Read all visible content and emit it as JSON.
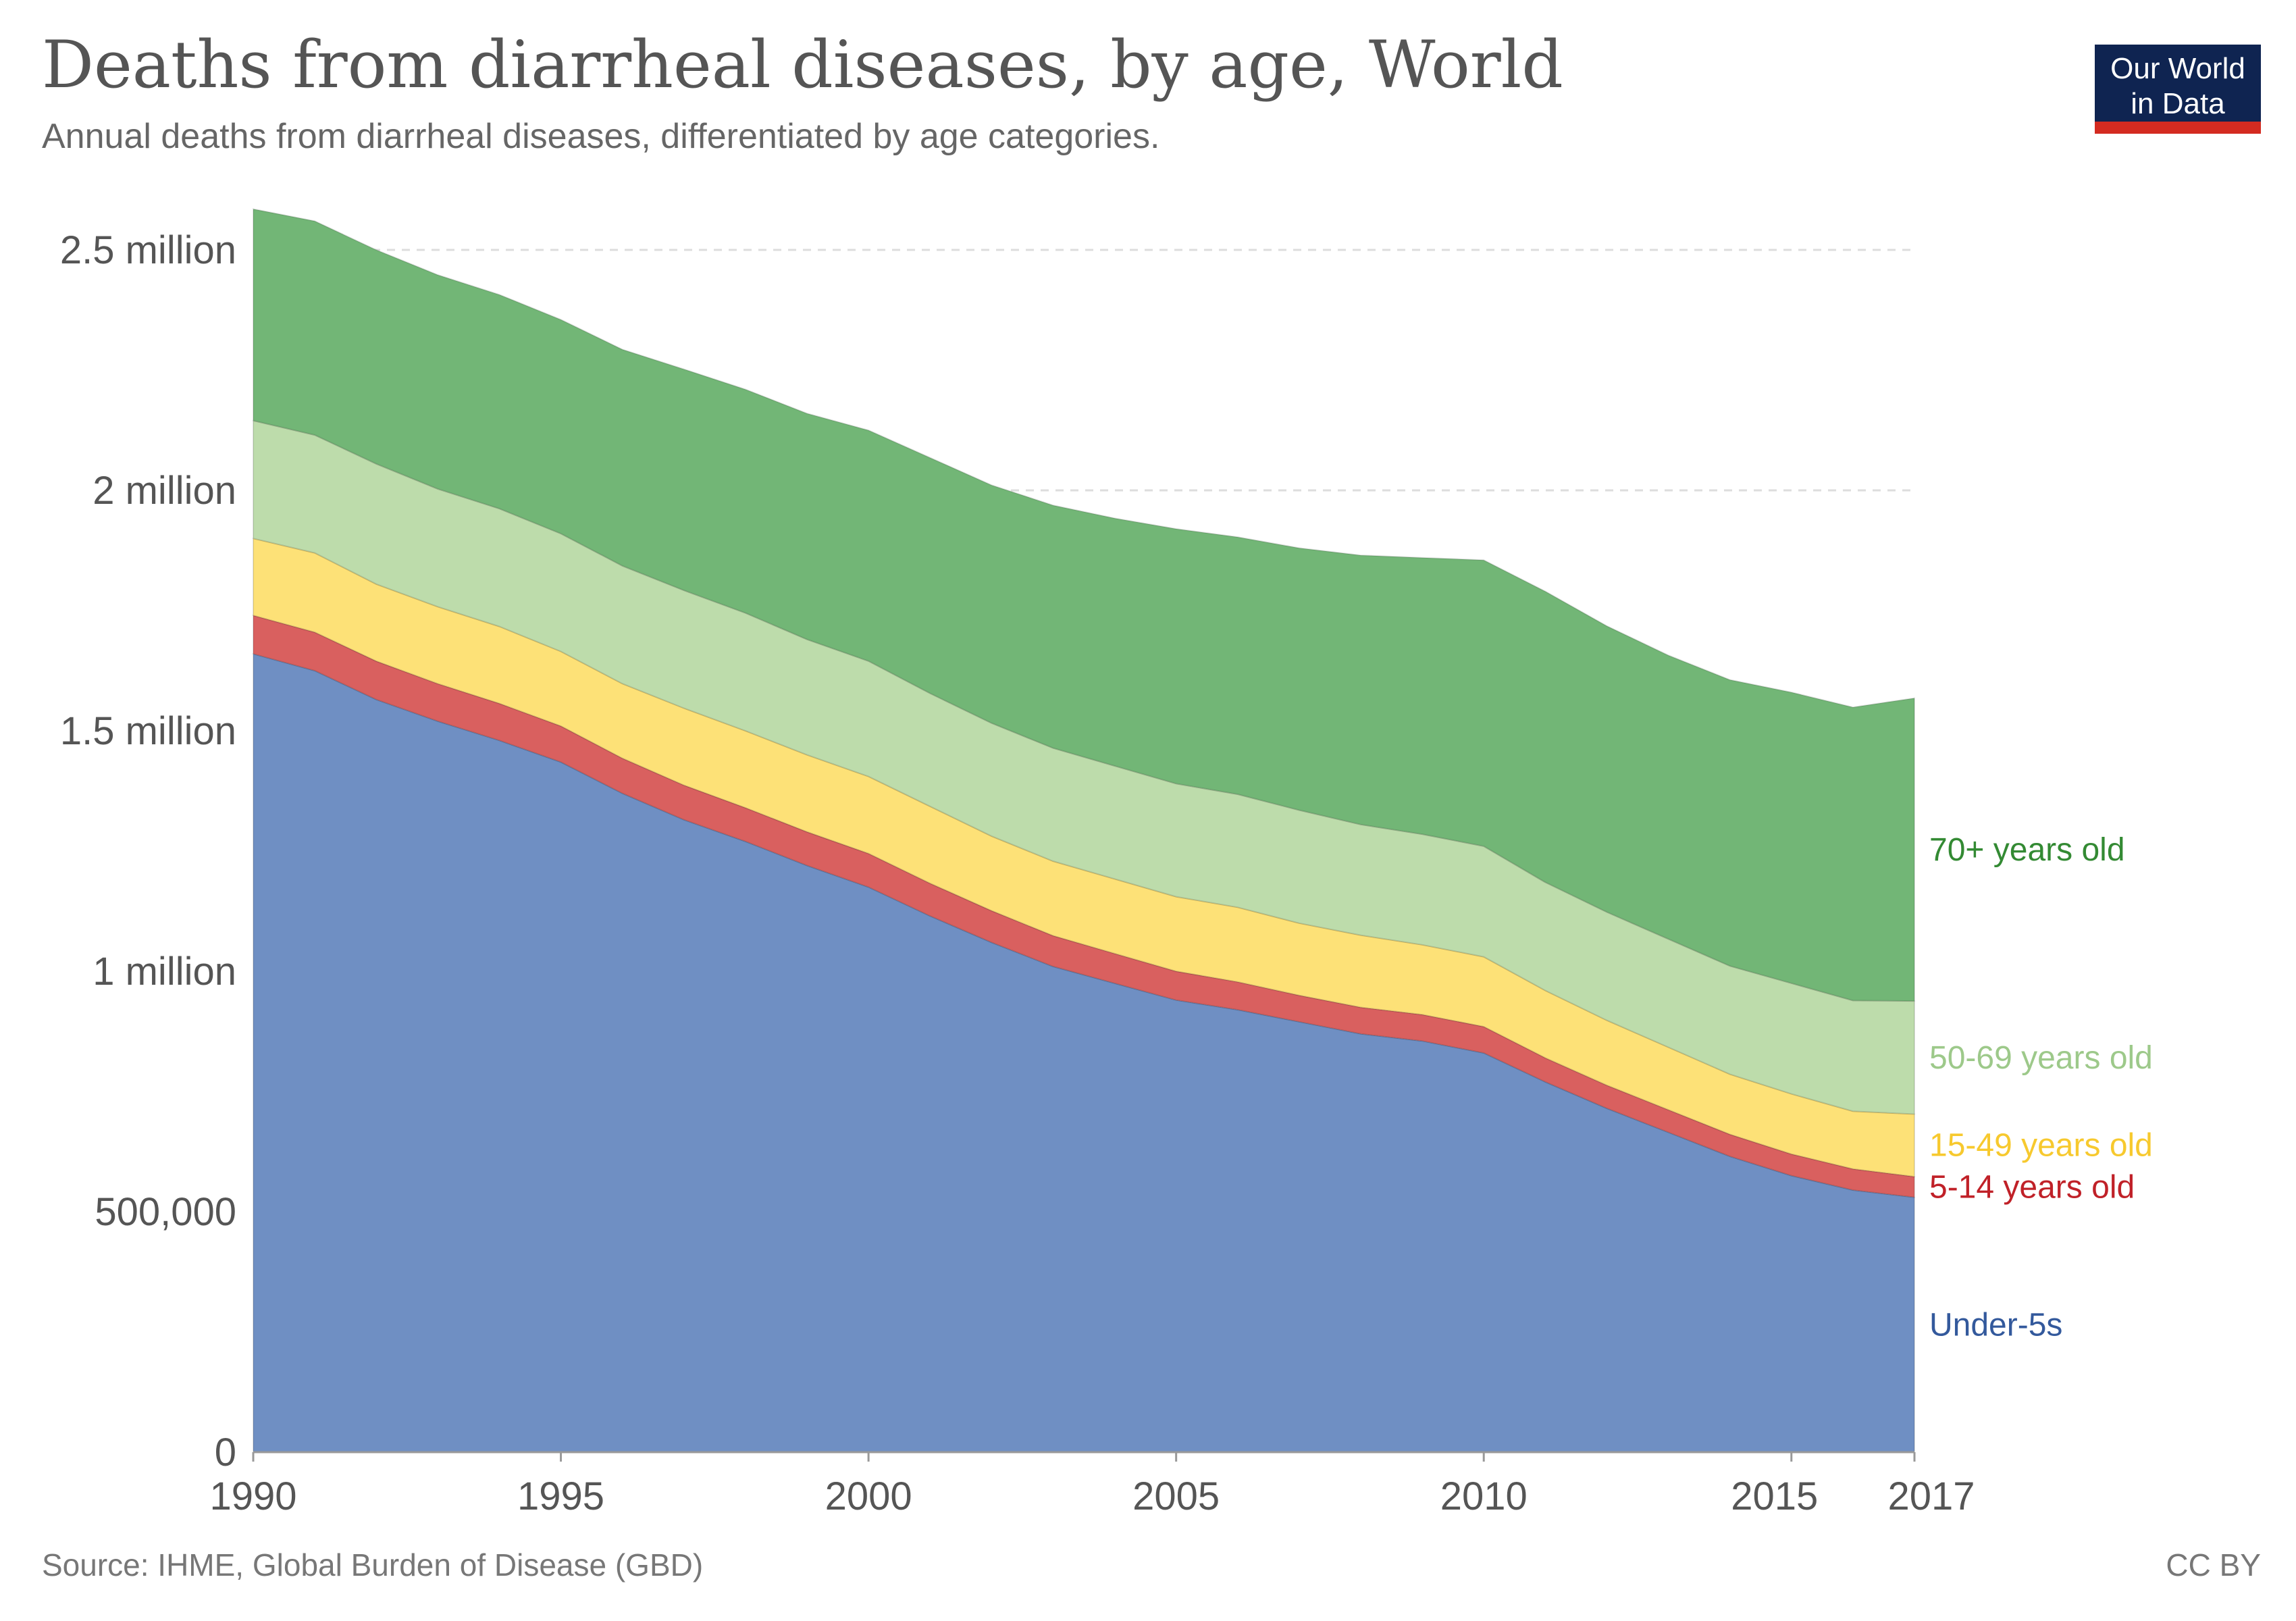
{
  "header": {
    "title": "Deaths from diarrheal diseases, by age, World",
    "subtitle": "Annual deaths from diarrheal diseases, differentiated by age categories."
  },
  "logo": {
    "line1": "Our World",
    "line2": "in Data"
  },
  "footer": {
    "source": "Source: IHME, Global Burden of Disease (GBD)",
    "license": "CC BY"
  },
  "colors": {
    "under5": "#6f8fc3",
    "age5_14": "#d9605f",
    "age15_49": "#fde177",
    "age50_69": "#bddcab",
    "age70plus": "#72b676",
    "under5_label": "#33599c",
    "age5_14_label": "#c02128",
    "age15_49_label": "#f7c92e",
    "age50_69_label": "#9dc98a",
    "age70plus_label": "#338a33",
    "grid": "#dddddd"
  },
  "chart_data": {
    "type": "area",
    "stacked": true,
    "title": "Deaths from diarrheal diseases, by age, World",
    "xlabel": "",
    "ylabel": "",
    "xlim": [
      1990,
      2017
    ],
    "ylim": [
      0,
      2500000
    ],
    "x": [
      1990,
      1991,
      1992,
      1993,
      1994,
      1995,
      1996,
      1997,
      1998,
      1999,
      2000,
      2001,
      2002,
      2003,
      2004,
      2005,
      2006,
      2007,
      2008,
      2009,
      2010,
      2011,
      2012,
      2013,
      2014,
      2015,
      2016,
      2017
    ],
    "x_ticks": [
      {
        "value": 1990,
        "label": "1990"
      },
      {
        "value": 1995,
        "label": "1995"
      },
      {
        "value": 2000,
        "label": "2000"
      },
      {
        "value": 2005,
        "label": "2005"
      },
      {
        "value": 2010,
        "label": "2010"
      },
      {
        "value": 2015,
        "label": "2015"
      },
      {
        "value": 2017,
        "label": "2017"
      }
    ],
    "y_ticks": [
      {
        "value": 0,
        "label": "0"
      },
      {
        "value": 500000,
        "label": "500,000"
      },
      {
        "value": 1000000,
        "label": "1 million"
      },
      {
        "value": 1500000,
        "label": "1.5 million"
      },
      {
        "value": 2000000,
        "label": "2 million"
      },
      {
        "value": 2500000,
        "label": "2.5 million"
      }
    ],
    "series": [
      {
        "name": "Under-5s",
        "color_key": "under5",
        "label_color_key": "under5_label",
        "values": [
          1660000,
          1625000,
          1565000,
          1520000,
          1480000,
          1435000,
          1370000,
          1315000,
          1270000,
          1220000,
          1175000,
          1115000,
          1060000,
          1010000,
          975000,
          940000,
          920000,
          895000,
          870000,
          855000,
          830000,
          770000,
          715000,
          665000,
          615000,
          575000,
          545000,
          530000
        ]
      },
      {
        "name": "5-14 years old",
        "color_key": "age5_14",
        "label_color_key": "age5_14_label",
        "values": [
          80000,
          80000,
          80000,
          78000,
          77000,
          75000,
          73000,
          72000,
          70000,
          70000,
          70000,
          68000,
          66000,
          64000,
          62000,
          60000,
          58000,
          55000,
          55000,
          55000,
          55000,
          50000,
          48000,
          47000,
          46000,
          45000,
          44000,
          43000
        ]
      },
      {
        "name": "15-49 years old",
        "color_key": "age15_49",
        "label_color_key": "age15_49_label",
        "values": [
          160000,
          165000,
          160000,
          160000,
          160000,
          155000,
          155000,
          160000,
          160000,
          160000,
          160000,
          160000,
          155000,
          155000,
          155000,
          155000,
          155000,
          150000,
          150000,
          145000,
          145000,
          140000,
          135000,
          130000,
          125000,
          125000,
          120000,
          130000
        ]
      },
      {
        "name": "50-69 years old",
        "color_key": "age50_69",
        "label_color_key": "age50_69_label",
        "values": [
          245000,
          245000,
          250000,
          245000,
          245000,
          245000,
          245000,
          245000,
          245000,
          240000,
          240000,
          235000,
          235000,
          235000,
          235000,
          235000,
          235000,
          235000,
          230000,
          230000,
          230000,
          225000,
          225000,
          225000,
          225000,
          230000,
          230000,
          235000
        ]
      },
      {
        "name": "70+ years old",
        "color_key": "age70plus",
        "label_color_key": "age70plus_label",
        "values": [
          440000,
          445000,
          445000,
          445000,
          445000,
          445000,
          450000,
          460000,
          465000,
          470000,
          480000,
          490000,
          495000,
          505000,
          515000,
          530000,
          535000,
          545000,
          560000,
          575000,
          595000,
          605000,
          595000,
          590000,
          595000,
          605000,
          610000,
          630000
        ]
      }
    ]
  }
}
